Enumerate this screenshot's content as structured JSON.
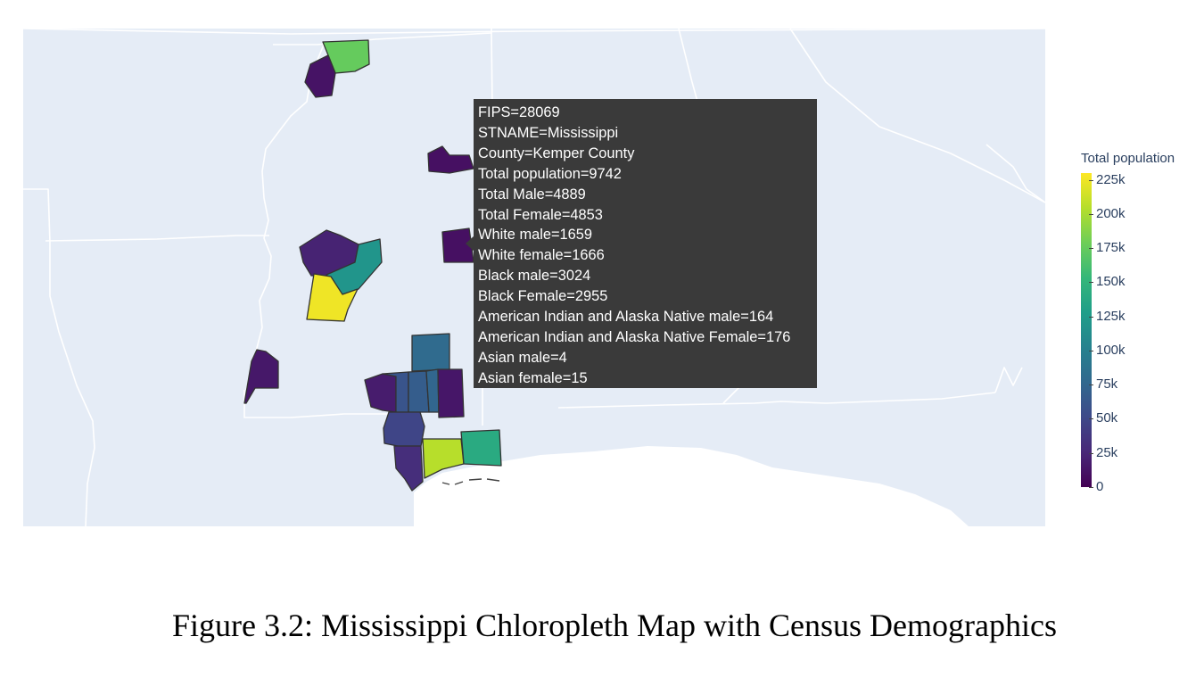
{
  "map": {
    "background_color": "#e5ecf6",
    "border_color": "#ffffff",
    "water_color": "#ffffff",
    "outline_color": "#333333",
    "colorscale": "Viridis"
  },
  "tooltip": {
    "lines": [
      "FIPS=28069",
      "STNAME=Mississippi",
      "County=Kemper County",
      "Total population=9742",
      "Total Male=4889",
      "Total Female=4853",
      "White male=1659",
      "White female=1666",
      "Black male=3024",
      "Black Female=2955",
      "American Indian and Alaska Native male=164",
      "American Indian and Alaska Native Female=176",
      "Asian male=4",
      "Asian female=15"
    ]
  },
  "colorbar": {
    "title": "Total population",
    "ticks": [
      "0",
      "25k",
      "50k",
      "75k",
      "100k",
      "125k",
      "150k",
      "175k",
      "200k",
      "225k"
    ],
    "tick_values": [
      0,
      25000,
      50000,
      75000,
      100000,
      125000,
      150000,
      175000,
      200000,
      225000
    ],
    "range": [
      0,
      230000
    ]
  },
  "caption": "Figure 3.2: Mississippi Chloropleth Map with Census Demographics"
}
